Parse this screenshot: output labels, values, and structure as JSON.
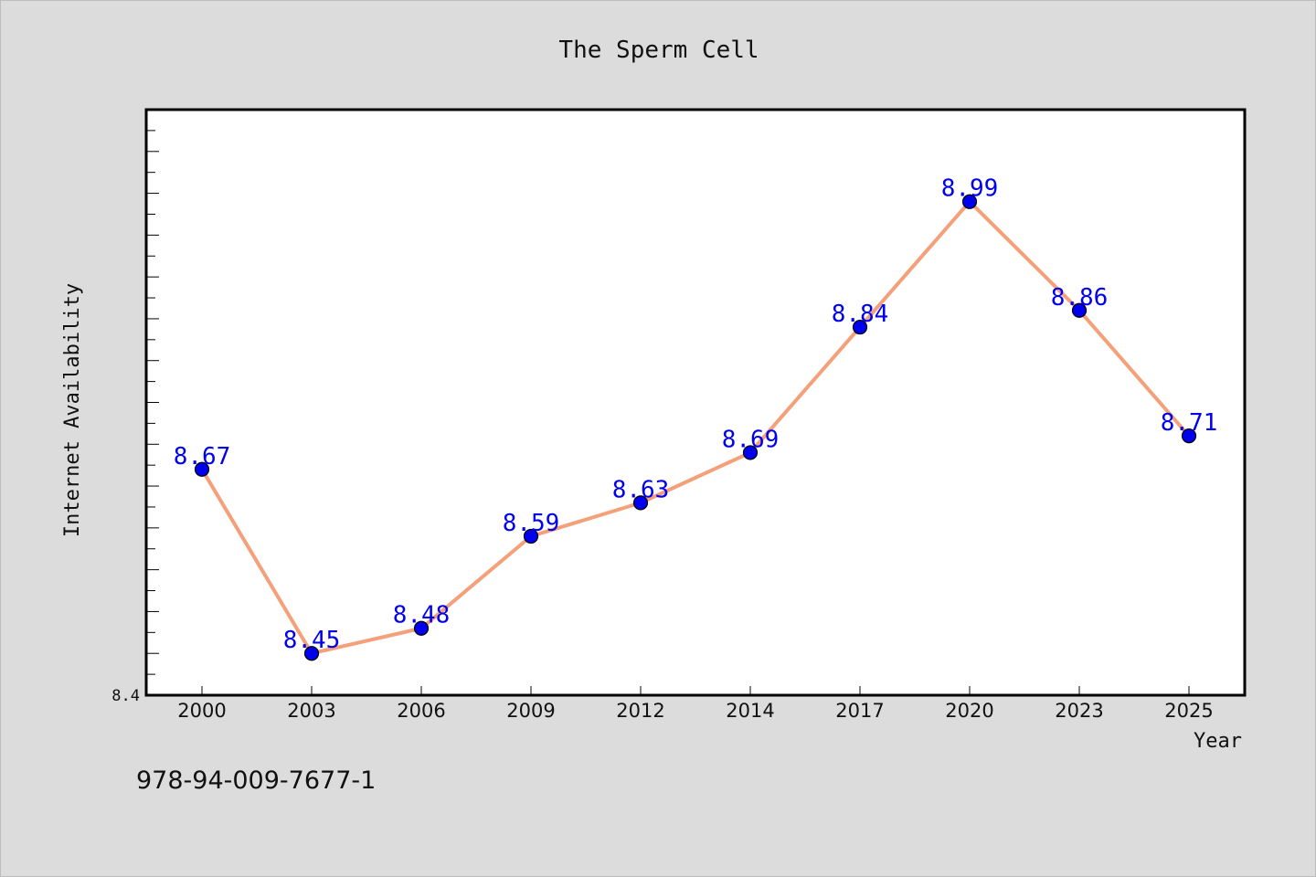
{
  "chart_data": {
    "type": "line",
    "title": "The Sperm Cell",
    "xlabel": "Year",
    "ylabel": "Internet Availability",
    "categories": [
      "2000",
      "2003",
      "2006",
      "2009",
      "2012",
      "2014",
      "2017",
      "2020",
      "2023",
      "2025"
    ],
    "values": [
      8.67,
      8.45,
      8.48,
      8.59,
      8.63,
      8.69,
      8.84,
      8.99,
      8.86,
      8.71
    ],
    "data_labels": [
      "8.67",
      "8.45",
      "8.48",
      "8.59",
      "8.63",
      "8.69",
      "8.84",
      "8.99",
      "8.86",
      "8.71"
    ],
    "ylim": [
      8.4,
      9.1
    ],
    "y_tick_label": "8.4",
    "line_color": "#f4a07a",
    "marker_color": "#0000ee",
    "label_color": "#0000ee",
    "grid": false
  },
  "footer": {
    "isbn": "978-94-009-7677-1"
  }
}
